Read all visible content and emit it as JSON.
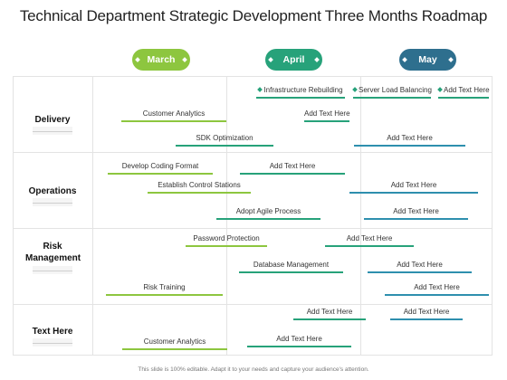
{
  "title": "Technical Department Strategic Development Three Months Roadmap",
  "months": [
    "March",
    "April",
    "May"
  ],
  "rows": [
    "Delivery",
    "Operations",
    "Risk Management",
    "Text Here"
  ],
  "tasks": [
    {
      "label": "Infrastructure Rebuilding",
      "diamond": true
    },
    {
      "label": "Server Load Balancing",
      "diamond": true
    },
    {
      "label": "Add Text Here",
      "diamond": true
    },
    {
      "label": "Customer Analytics"
    },
    {
      "label": "Add Text Here"
    },
    {
      "label": "SDK Optimization"
    },
    {
      "label": "Add Text Here"
    },
    {
      "label": "Develop Coding Format"
    },
    {
      "label": "Add Text Here"
    },
    {
      "label": "Establish Control Stations"
    },
    {
      "label": "Add Text Here"
    },
    {
      "label": "Adopt Agile Process"
    },
    {
      "label": "Add Text Here"
    },
    {
      "label": "Password Protection"
    },
    {
      "label": "Add Text Here"
    },
    {
      "label": "Database Management"
    },
    {
      "label": "Add Text Here"
    },
    {
      "label": "Risk Training"
    },
    {
      "label": "Add Text Here"
    },
    {
      "label": "Add Text Here"
    },
    {
      "label": "Add Text Here"
    },
    {
      "label": "Customer Analytics"
    },
    {
      "label": "Add Text Here"
    }
  ],
  "colors": {
    "march": "#8dc63f",
    "april": "#27a27a",
    "may": "#2e6f8e",
    "bar_blue": "#2e8fae"
  },
  "footer": "This slide is 100% editable. Adapt it to your needs and capture your audience's attention."
}
